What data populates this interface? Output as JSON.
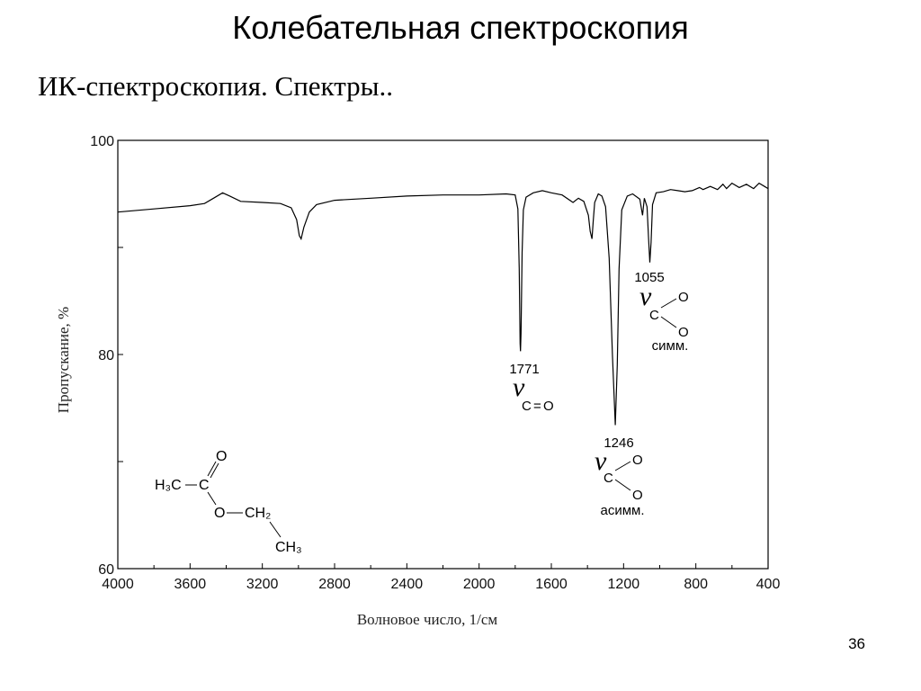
{
  "slide": {
    "title": "Колебательная спектроскопия",
    "subtitle": "ИК-спектроскопия. Спектры..",
    "page_number": "36"
  },
  "chart_data": {
    "type": "line",
    "xlabel": "Волновое число, 1/см",
    "ylabel": "Пропускание, %",
    "xlim": [
      4000,
      400
    ],
    "ylim": [
      60,
      100
    ],
    "x_reversed": true,
    "x_ticks": [
      4000,
      3600,
      3200,
      2800,
      2400,
      2000,
      1600,
      1200,
      800,
      400
    ],
    "y_ticks": [
      60,
      80,
      100
    ],
    "grid": false,
    "series": [
      {
        "line_color": "#000000",
        "points": [
          [
            4000,
            93.3
          ],
          [
            3800,
            93.6
          ],
          [
            3600,
            93.9
          ],
          [
            3520,
            94.1
          ],
          [
            3470,
            94.6
          ],
          [
            3420,
            95.1
          ],
          [
            3380,
            94.8
          ],
          [
            3320,
            94.3
          ],
          [
            3200,
            94.2
          ],
          [
            3100,
            94.1
          ],
          [
            3040,
            93.7
          ],
          [
            3010,
            92.6
          ],
          [
            2995,
            91.1
          ],
          [
            2985,
            90.8
          ],
          [
            2970,
            91.9
          ],
          [
            2940,
            93.3
          ],
          [
            2900,
            94.0
          ],
          [
            2800,
            94.4
          ],
          [
            2600,
            94.6
          ],
          [
            2400,
            94.8
          ],
          [
            2200,
            94.9
          ],
          [
            2000,
            94.9
          ],
          [
            1850,
            95.0
          ],
          [
            1800,
            94.9
          ],
          [
            1785,
            93.6
          ],
          [
            1778,
            88.0
          ],
          [
            1773,
            81.0
          ],
          [
            1771,
            80.3
          ],
          [
            1768,
            82.0
          ],
          [
            1762,
            89.5
          ],
          [
            1755,
            93.5
          ],
          [
            1740,
            94.7
          ],
          [
            1700,
            95.1
          ],
          [
            1650,
            95.3
          ],
          [
            1600,
            95.1
          ],
          [
            1540,
            94.9
          ],
          [
            1480,
            94.2
          ],
          [
            1450,
            94.6
          ],
          [
            1420,
            94.3
          ],
          [
            1395,
            93.0
          ],
          [
            1385,
            91.5
          ],
          [
            1375,
            90.8
          ],
          [
            1368,
            92.5
          ],
          [
            1360,
            94.2
          ],
          [
            1340,
            95.0
          ],
          [
            1320,
            94.8
          ],
          [
            1300,
            93.8
          ],
          [
            1280,
            89.0
          ],
          [
            1262,
            80.0
          ],
          [
            1246,
            73.4
          ],
          [
            1235,
            79.0
          ],
          [
            1225,
            88.0
          ],
          [
            1210,
            93.5
          ],
          [
            1180,
            94.8
          ],
          [
            1150,
            95.0
          ],
          [
            1110,
            94.5
          ],
          [
            1095,
            93.0
          ],
          [
            1085,
            94.6
          ],
          [
            1070,
            93.8
          ],
          [
            1062,
            91.0
          ],
          [
            1055,
            88.6
          ],
          [
            1048,
            90.5
          ],
          [
            1040,
            94.0
          ],
          [
            1020,
            95.1
          ],
          [
            980,
            95.2
          ],
          [
            940,
            95.4
          ],
          [
            900,
            95.3
          ],
          [
            860,
            95.2
          ],
          [
            820,
            95.3
          ],
          [
            780,
            95.6
          ],
          [
            760,
            95.4
          ],
          [
            720,
            95.7
          ],
          [
            680,
            95.4
          ],
          [
            650,
            95.9
          ],
          [
            630,
            95.5
          ],
          [
            600,
            96.0
          ],
          [
            560,
            95.6
          ],
          [
            520,
            95.9
          ],
          [
            480,
            95.5
          ],
          [
            450,
            96.0
          ],
          [
            420,
            95.7
          ],
          [
            400,
            95.5
          ]
        ]
      }
    ],
    "annotations": [
      {
        "wavenumber": "1771",
        "mode": "C=O"
      },
      {
        "wavenumber": "1246",
        "mode": "асимм."
      },
      {
        "wavenumber": "1055",
        "mode": "симм."
      }
    ]
  },
  "structure": {
    "h3c": "H₃C",
    "c": "C",
    "o_top": "O",
    "o_ester": "O",
    "ch2": "CH₂",
    "ch3": "CH₃"
  },
  "labels": {
    "nu": "ν",
    "c": "C",
    "o": "O",
    "eq": "="
  }
}
